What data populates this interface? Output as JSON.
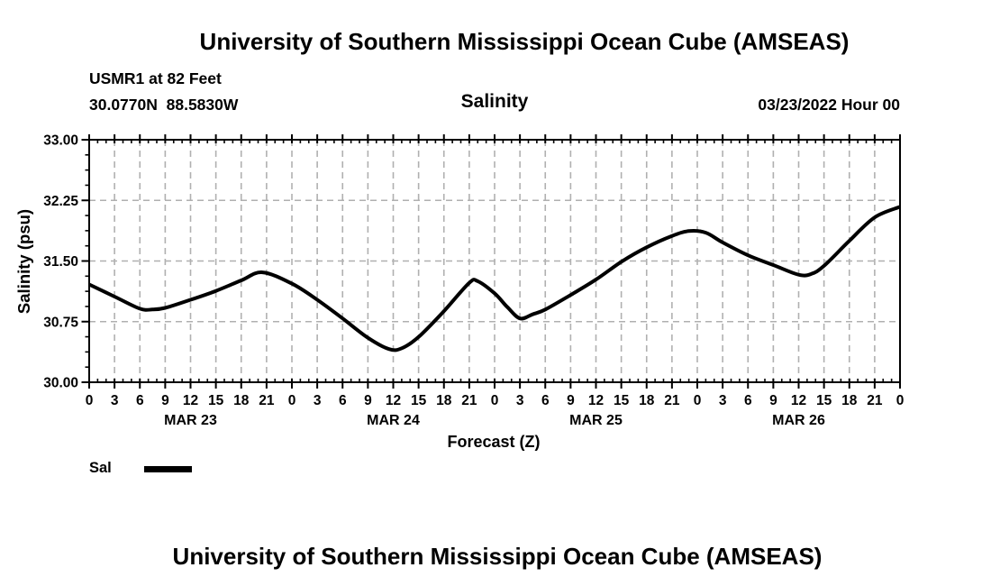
{
  "header": {
    "title": "University of Southern Mississippi Ocean Cube (AMSEAS)",
    "station": "USMR1 at 82 Feet",
    "coordinates": "30.0770N  88.5830W",
    "plot_variable": "Salinity",
    "run_datetime": "03/23/2022 Hour 00"
  },
  "legend": {
    "label": "Sal",
    "swatch_color": "#000000"
  },
  "footer": {
    "next_chart_title": "University of Southern Mississippi Ocean Cube (AMSEAS)"
  },
  "chart_data": {
    "type": "line",
    "title": "Salinity",
    "xlabel": "Forecast (Z)",
    "ylabel": "Salinity (psu)",
    "ylim": [
      30.0,
      33.0
    ],
    "yticks": [
      "30.00",
      "30.75",
      "31.50",
      "32.25",
      "33.00"
    ],
    "y_minor_step": 0.1875,
    "x_hours_range": [
      0,
      96
    ],
    "x_major_step_hours": 3,
    "x_minor_step_hours": 1,
    "x_hour_label_cycle": [
      "0",
      "3",
      "6",
      "9",
      "12",
      "15",
      "18",
      "21"
    ],
    "day_labels": [
      "MAR 23",
      "MAR 24",
      "MAR 25",
      "MAR 26"
    ],
    "grid": true,
    "legend_position": "bottom-left",
    "line_color": "#000000",
    "grid_color": "#b0b0b0",
    "series": [
      {
        "name": "Sal",
        "points": [
          [
            0,
            31.21
          ],
          [
            3,
            31.06
          ],
          [
            6,
            30.91
          ],
          [
            7.5,
            30.9
          ],
          [
            9,
            30.92
          ],
          [
            12,
            31.02
          ],
          [
            15,
            31.13
          ],
          [
            18,
            31.26
          ],
          [
            20.5,
            31.36
          ],
          [
            24,
            31.22
          ],
          [
            27,
            31.02
          ],
          [
            30,
            30.79
          ],
          [
            33,
            30.55
          ],
          [
            35.5,
            30.41
          ],
          [
            37,
            30.42
          ],
          [
            39,
            30.56
          ],
          [
            42,
            30.88
          ],
          [
            45,
            31.23
          ],
          [
            46,
            31.25
          ],
          [
            48,
            31.1
          ],
          [
            49.5,
            30.93
          ],
          [
            51,
            30.79
          ],
          [
            52.5,
            30.84
          ],
          [
            54,
            30.9
          ],
          [
            57,
            31.08
          ],
          [
            60,
            31.27
          ],
          [
            63,
            31.49
          ],
          [
            66,
            31.67
          ],
          [
            69,
            31.81
          ],
          [
            71,
            31.87
          ],
          [
            73,
            31.85
          ],
          [
            75,
            31.73
          ],
          [
            78,
            31.57
          ],
          [
            81,
            31.45
          ],
          [
            84,
            31.33
          ],
          [
            85.5,
            31.34
          ],
          [
            87,
            31.44
          ],
          [
            90,
            31.75
          ],
          [
            93,
            32.04
          ],
          [
            96,
            32.17
          ]
        ]
      }
    ]
  }
}
